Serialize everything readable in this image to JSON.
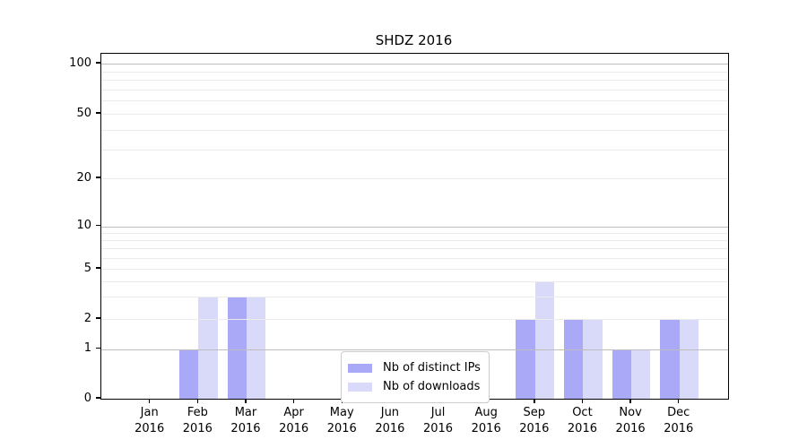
{
  "chart_data": {
    "type": "bar",
    "title": "SHDZ 2016",
    "x_categories": [
      "Jan 2016",
      "Feb 2016",
      "Mar 2016",
      "Apr 2016",
      "May 2016",
      "Jun 2016",
      "Jul 2016",
      "Aug 2016",
      "Sep 2016",
      "Oct 2016",
      "Nov 2016",
      "Dec 2016"
    ],
    "series": [
      {
        "name": "Nb of distinct IPs",
        "color": "#a9a9f7",
        "values": [
          0,
          1,
          3,
          0,
          0,
          0,
          0,
          0,
          2,
          2,
          1,
          2
        ]
      },
      {
        "name": "Nb of downloads",
        "color": "#d9d9f9",
        "values": [
          0,
          3,
          3,
          0,
          0,
          0,
          0,
          0,
          4,
          2,
          1,
          2
        ]
      }
    ],
    "y_axis": {
      "scale": "log (with 0 baseline)",
      "ticks": [
        0,
        1,
        2,
        5,
        10,
        20,
        50,
        100
      ],
      "top_value": 115
    },
    "grid": {
      "on": true,
      "major_values": [
        1,
        10,
        100
      ],
      "minor_values": [
        2,
        3,
        4,
        5,
        6,
        7,
        8,
        9,
        20,
        30,
        40,
        50,
        60,
        70,
        80,
        90
      ],
      "major_color": "#bdbdbd",
      "minor_color": "#ebebeb",
      "drawn_above_bars": true
    },
    "legend": {
      "position": "bottom-center-inside",
      "entries": [
        "Nb of distinct IPs",
        "Nb of downloads"
      ]
    },
    "background": "#ffffff",
    "spine_color": "#000000"
  }
}
